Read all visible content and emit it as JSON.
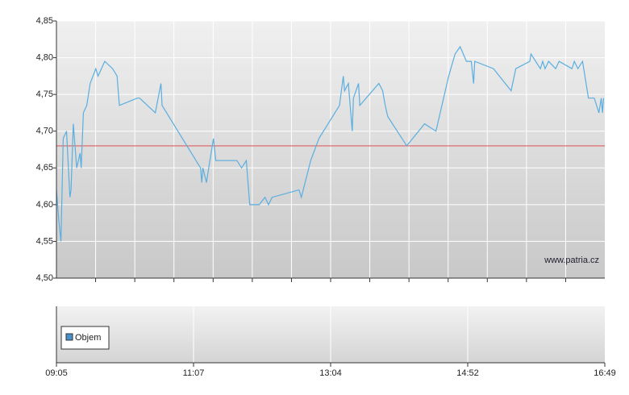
{
  "chart_data": {
    "type": "line",
    "xlim": [
      "09:05",
      "16:49"
    ],
    "xticks": [
      "09:05",
      "11:07",
      "13:04",
      "14:52",
      "16:49"
    ],
    "ylim": [
      4.5,
      4.85
    ],
    "yticks": [
      {
        "value": 4.5,
        "label": "4,50"
      },
      {
        "value": 4.55,
        "label": "4,55"
      },
      {
        "value": 4.6,
        "label": "4,60"
      },
      {
        "value": 4.65,
        "label": "4,65"
      },
      {
        "value": 4.7,
        "label": "4,70"
      },
      {
        "value": 4.75,
        "label": "4,75"
      },
      {
        "value": 4.8,
        "label": "4,80"
      },
      {
        "value": 4.85,
        "label": "4,85"
      }
    ],
    "grid": true,
    "reference_line": {
      "value": 4.68,
      "color": "#e06060"
    },
    "watermark": "www.patria.cz",
    "volume_legend": "Objem",
    "volume_color": "#4a90c8",
    "series": [
      {
        "color": "#5aaee0",
        "x": [
          "09:05",
          "09:07",
          "09:09",
          "09:11",
          "09:14",
          "09:17",
          "09:18",
          "09:20",
          "09:23",
          "09:26",
          "09:27",
          "09:29",
          "09:32",
          "09:35",
          "09:40",
          "09:42",
          "09:48",
          "09:55",
          "09:59",
          "10:01",
          "10:17",
          "10:19",
          "10:33",
          "10:38",
          "10:39",
          "11:13",
          "11:14",
          "11:15",
          "11:18",
          "11:21",
          "11:24",
          "11:26",
          "11:44",
          "11:48",
          "11:52",
          "11:55",
          "12:03",
          "12:08",
          "12:11",
          "12:14",
          "12:37",
          "12:39",
          "12:47",
          "12:54",
          "13:11",
          "13:14",
          "13:15",
          "13:18",
          "13:21",
          "13:22",
          "13:26",
          "13:27",
          "13:42",
          "13:45",
          "13:47",
          "13:49",
          "14:04",
          "14:18",
          "14:27",
          "14:37",
          "14:42",
          "14:46",
          "14:51",
          "14:55",
          "14:57",
          "14:58",
          "15:14",
          "15:29",
          "15:33",
          "15:45",
          "15:46",
          "15:54",
          "15:56",
          "15:58",
          "16:01",
          "16:07",
          "16:10",
          "16:21",
          "16:23",
          "16:26",
          "16:30",
          "16:35",
          "16:40",
          "16:44",
          "16:46",
          "16:47",
          "16:48"
        ],
        "values": [
          4.62,
          4.58,
          4.55,
          4.69,
          4.7,
          4.61,
          4.62,
          4.71,
          4.65,
          4.67,
          4.65,
          4.725,
          4.735,
          4.765,
          4.785,
          4.775,
          4.795,
          4.785,
          4.775,
          4.735,
          4.745,
          4.745,
          4.725,
          4.765,
          4.735,
          4.65,
          4.63,
          4.65,
          4.63,
          4.66,
          4.69,
          4.66,
          4.66,
          4.65,
          4.66,
          4.6,
          4.6,
          4.61,
          4.6,
          4.61,
          4.62,
          4.61,
          4.66,
          4.69,
          4.735,
          4.775,
          4.755,
          4.765,
          4.7,
          4.745,
          4.765,
          4.735,
          4.765,
          4.755,
          4.735,
          4.72,
          4.68,
          4.71,
          4.7,
          4.775,
          4.805,
          4.815,
          4.795,
          4.795,
          4.765,
          4.795,
          4.785,
          4.755,
          4.785,
          4.795,
          4.805,
          4.785,
          4.795,
          4.785,
          4.795,
          4.785,
          4.795,
          4.785,
          4.795,
          4.785,
          4.795,
          4.745,
          4.745,
          4.725,
          4.745,
          4.725,
          4.745
        ]
      }
    ]
  }
}
